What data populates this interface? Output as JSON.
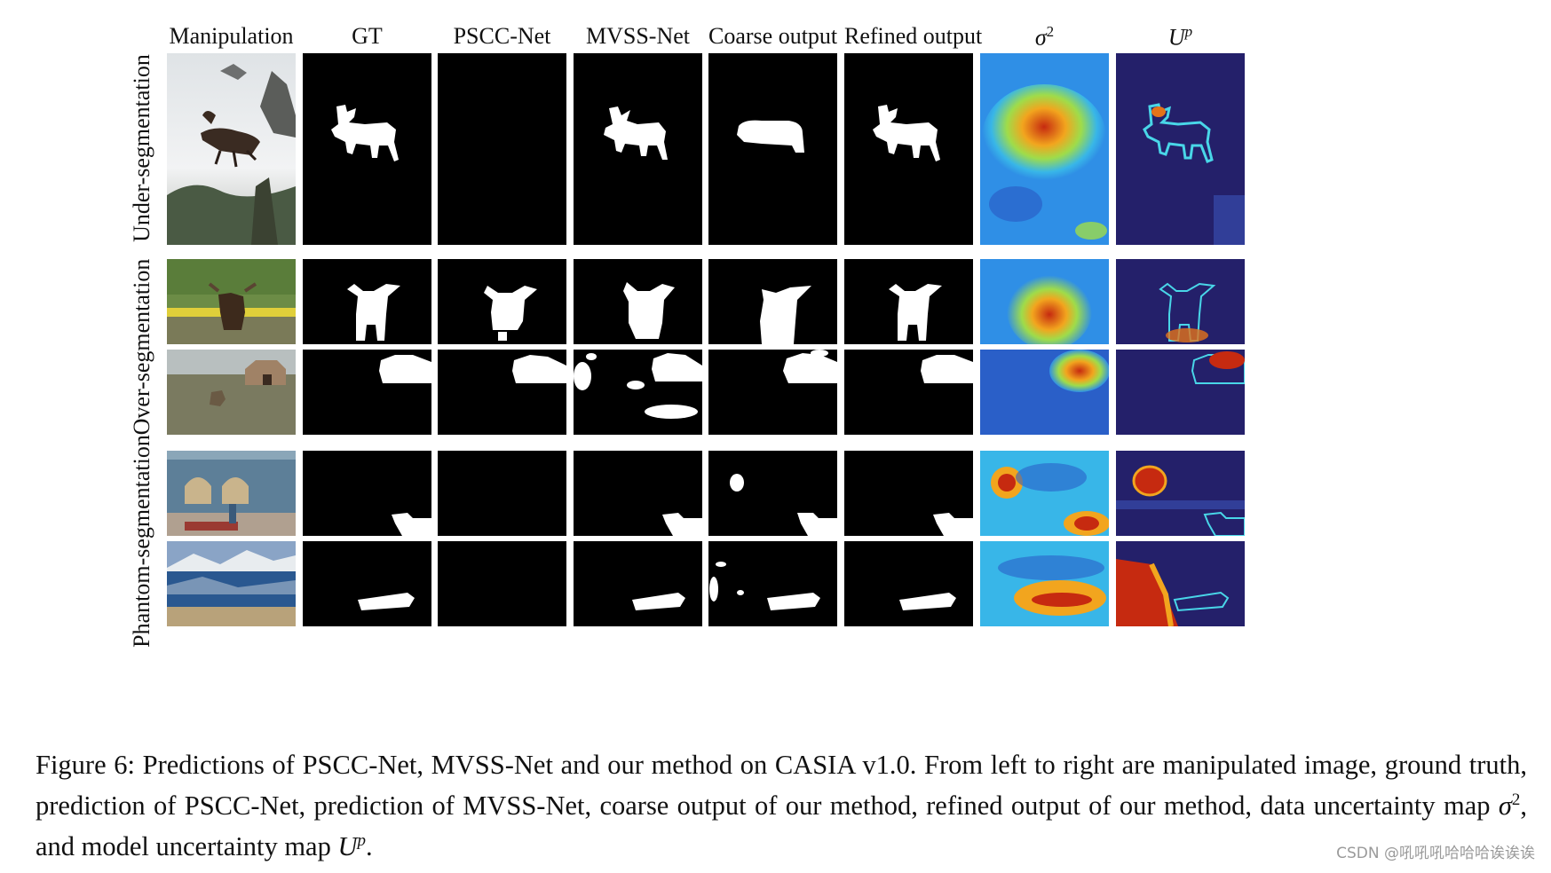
{
  "columns": {
    "manipulation": "Manipulation",
    "gt": "GT",
    "pscc": "PSCC-Net",
    "mvss": "MVSS-Net",
    "coarse": "Coarse output",
    "refined": "Refined output",
    "sigma_base": "σ",
    "sigma_exp": "2",
    "u_base": "U",
    "u_exp": "p"
  },
  "row_groups": {
    "under": "Under-segmentation",
    "over": "Over-segmentation",
    "phantom": "Phantom-segmentation"
  },
  "caption": {
    "part1": "Figure 6: Predictions of PSCC-Net, MVSS-Net and our method on CASIA v1.0. From left to right are manipulated image, ground truth, prediction of PSCC-Net, prediction of MVSS-Net, coarse output of our method, refined output of our method, data uncertainty map ",
    "sigma_base": "σ",
    "sigma_exp": "2",
    "part2": ", and model uncertainty map ",
    "u_base": "U",
    "u_exp": "p",
    "part3": "."
  },
  "watermark": "CSDN @吼吼吼哈哈哈诶诶诶",
  "colors": {
    "mask_bg": "#000000",
    "mask_fg": "#ffffff",
    "sigma_bg": "#2f8fe6",
    "u_bg": "#24206a",
    "hot": "#c62a10"
  }
}
